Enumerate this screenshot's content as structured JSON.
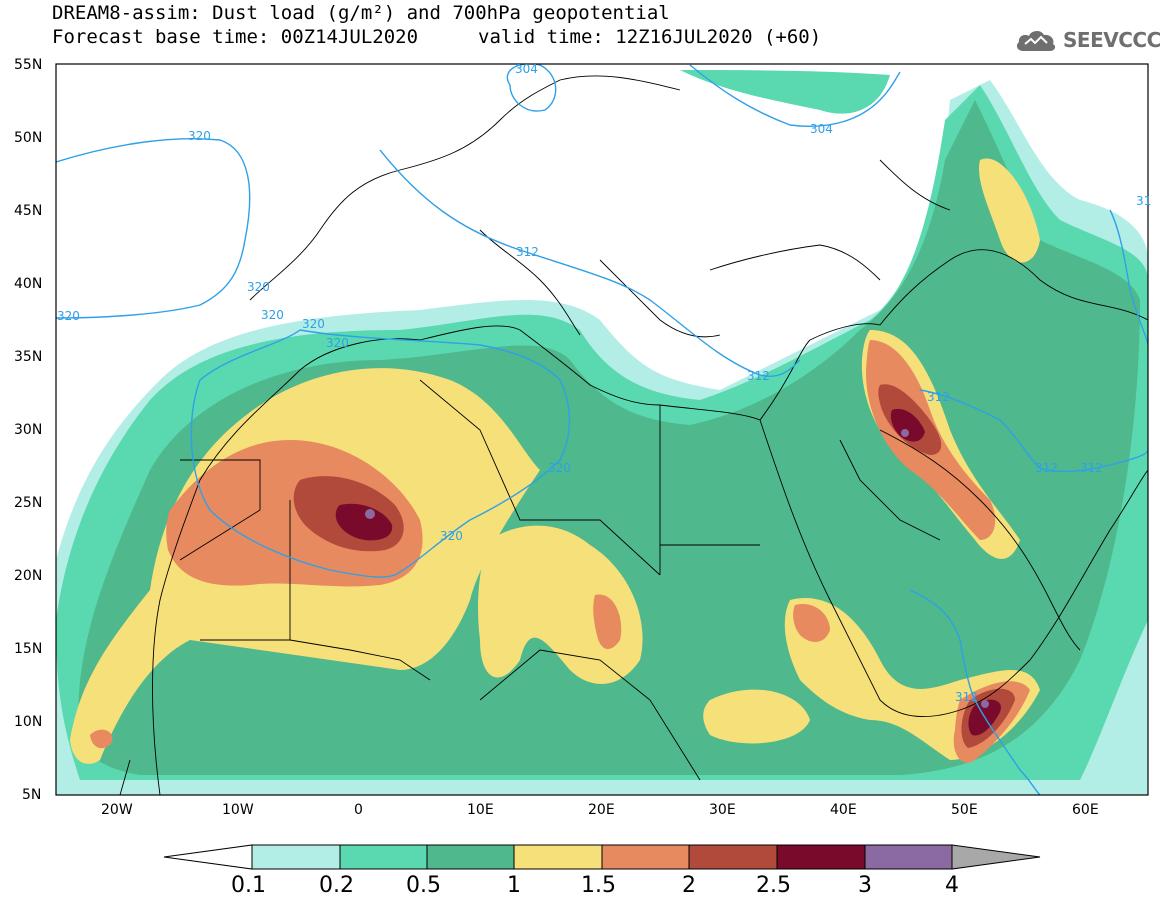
{
  "header": {
    "title_line1": "DREAM8-assim: Dust load (g/m²) and 700hPa geopotential",
    "title_line2": "Forecast base time: 00Z14JUL2020",
    "valid_time": "valid time: 12Z16JUL2020 (+60)",
    "logo_text": "SEEVCCC"
  },
  "map": {
    "lat_labels": [
      "55N",
      "50N",
      "45N",
      "40N",
      "35N",
      "30N",
      "25N",
      "20N",
      "15N",
      "10N",
      "5N"
    ],
    "lon_labels": [
      "20W",
      "10W",
      "0",
      "10E",
      "20E",
      "30E",
      "40E",
      "50E",
      "60E"
    ],
    "contour_labels": [
      "304",
      "304",
      "320",
      "320",
      "320",
      "320",
      "320",
      "320",
      "312",
      "312",
      "320",
      "312",
      "312",
      "312",
      "312",
      "312",
      "31"
    ]
  },
  "colorbar": {
    "labels": [
      "0.1",
      "0.2",
      "0.5",
      "1",
      "1.5",
      "2",
      "2.5",
      "3",
      "4"
    ],
    "colors": [
      "#b3eee6",
      "#5ad9b0",
      "#4fb88c",
      "#f6e07a",
      "#e88a60",
      "#b24a3c",
      "#7a0a2c",
      "#8a6aa0",
      "#a8a8a8"
    ]
  },
  "dust_palette": {
    "c01": "#b3eee6",
    "c02": "#5ad9b0",
    "c05": "#4fb88c",
    "c10": "#f6e07a",
    "c15": "#e88a60",
    "c20": "#b24a3c",
    "c25": "#7a0a2c",
    "c30": "#8a6aa0"
  },
  "contour_color": "#2fa0e8"
}
